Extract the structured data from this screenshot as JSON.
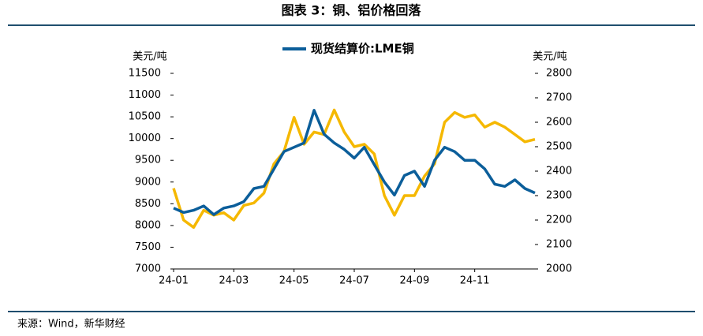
{
  "chart_data": {
    "type": "line",
    "title": "图表 3：铜、铝价格回落",
    "source": "来源：Wind，新华财经",
    "y_label": "美元/吨",
    "y2_label": "美元/吨",
    "categories": [
      "24-01",
      null,
      null,
      null,
      null,
      null,
      "24-03",
      null,
      null,
      null,
      null,
      null,
      "24-05",
      null,
      null,
      null,
      null,
      null,
      "24-07",
      null,
      null,
      null,
      null,
      null,
      "24-09",
      null,
      null,
      null,
      null,
      null,
      "24-11",
      null,
      null,
      null,
      null,
      null,
      null
    ],
    "series": [
      {
        "name": "现货结算价:LME铜",
        "color": "#0b5e9a",
        "values": [
          8400,
          8300,
          8350,
          8450,
          8250,
          8400,
          8450,
          8550,
          8850,
          8900,
          9300,
          9700,
          9800,
          9900,
          10650,
          10100,
          9900,
          9750,
          9550,
          9800,
          9400,
          9000,
          8700,
          9150,
          9250,
          8900,
          9500,
          9800,
          9700,
          9500,
          9500,
          9300,
          8950,
          8900,
          9050,
          8850,
          8750
        ]
      },
      {
        "color": "#f5b800",
        "axis": "y2",
        "values": [
          2330,
          2200,
          2170,
          2240,
          2220,
          2230,
          2200,
          2260,
          2270,
          2310,
          2430,
          2480,
          2620,
          2510,
          2560,
          2550,
          2650,
          2560,
          2500,
          2510,
          2470,
          2300,
          2220,
          2300,
          2300,
          2380,
          2430,
          2600,
          2640,
          2620,
          2630,
          2580,
          2600,
          2580,
          2550,
          2520,
          2530
        ]
      }
    ],
    "ylim": [
      7000,
      11500
    ],
    "yticks": [
      7000,
      7500,
      8000,
      8500,
      9000,
      9500,
      10000,
      10500,
      11000,
      11500
    ],
    "y2lim": [
      2000,
      2800
    ],
    "y2ticks": [
      2000,
      2100,
      2200,
      2300,
      2400,
      2500,
      2600,
      2700,
      2800
    ]
  }
}
